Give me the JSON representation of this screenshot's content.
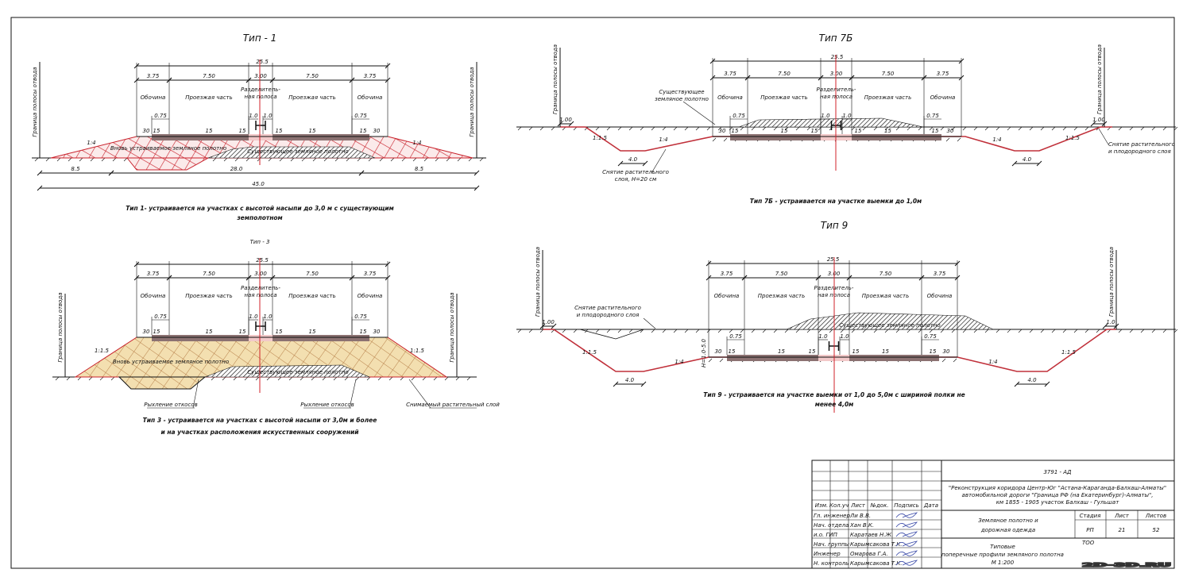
{
  "sections": [
    {
      "title": "Тип - 1",
      "total": "25.5",
      "parts": [
        "3.75",
        "7.50",
        "3.00",
        "7.50",
        "3.75"
      ],
      "zones": [
        "Обочина",
        "Проезжая часть",
        "Проезжая часть",
        "Обочина"
      ],
      "median": [
        "Разделитель-",
        "ная полоса"
      ],
      "small": [
        "0.75",
        "1.0",
        "1.0",
        "0.75"
      ],
      "grades": [
        "30",
        "15",
        "15",
        "15",
        "15",
        "15",
        "15",
        "30"
      ],
      "slopes": [
        "1:4",
        "1:4"
      ],
      "border": "Граница полосы отвода",
      "notes": [
        "Вновь устраиваемое земляное полотно",
        "Существующее земляное полотно"
      ],
      "bottom": [
        "8.5",
        "28.0",
        "8.5"
      ],
      "overall": "45.0",
      "caption": [
        "Тип 1- устраивается на участках с высотой насыпи до 3,0 м с существующим",
        "земполотном"
      ]
    },
    {
      "title": "Тип - 3",
      "total": "25.5",
      "parts": [
        "3.75",
        "7.50",
        "3.00",
        "7.50",
        "3.75"
      ],
      "zones": [
        "Обочина",
        "Проезжая часть",
        "Проезжая часть",
        "Обочина"
      ],
      "median": [
        "Разделитель-",
        "ная полоса"
      ],
      "small": [
        "0.75",
        "1.0",
        "1.0",
        "0.75"
      ],
      "grades": [
        "30",
        "15",
        "15",
        "15",
        "15",
        "15",
        "15",
        "30"
      ],
      "slopes": [
        "1:1.5",
        "1:1.5"
      ],
      "border": "Граница полосы отвода",
      "notes": [
        "Вновь устраиваемое земляное полотно",
        "Существующее земляное полотно",
        "Рыхление откосов",
        "Рыхление откосов",
        "Снимаемый растительный слой"
      ],
      "caption": [
        "Тип 3 - устраивается на участках с высотой насыпи от 3,0м и более",
        "и на участках расположения искусственных сооружений"
      ]
    },
    {
      "title": "Тип 7Б",
      "total": "25.5",
      "parts": [
        "3.75",
        "7.50",
        "3.00",
        "7.50",
        "3.75"
      ],
      "zones": [
        "Обочина",
        "Проезжая часть",
        "Проезжая часть",
        "Обочина"
      ],
      "median": [
        "Разделитель-",
        "ная полоса"
      ],
      "small": [
        "0.75",
        "1.0",
        "1.0",
        "0.75"
      ],
      "grades": [
        "30",
        "15",
        "15",
        "15",
        "15",
        "15",
        "15",
        "30"
      ],
      "slopes": [
        "1:1.5",
        "1:4",
        "1:4",
        "1:1.5"
      ],
      "ditch": [
        "4.0",
        "4.0"
      ],
      "edge": [
        "1.00",
        "1.00"
      ],
      "border": "Граница полосы отвода",
      "notes": [
        "Существующее",
        "земляное полотно",
        "Снятие растительного",
        "слоя, H=20 см",
        "Снятие растительного",
        "и плодородного слоя"
      ],
      "caption": [
        "Тип 7Б - устраивается на участке выемки до 1,0м"
      ]
    },
    {
      "title": "Тип 9",
      "total": "25.5",
      "parts": [
        "3.75",
        "7.50",
        "3.00",
        "7.50",
        "3.75"
      ],
      "zones": [
        "Обочина",
        "Проезжая часть",
        "Проезжая часть",
        "Обочина"
      ],
      "median": [
        "Разделитель-",
        "ная полоса"
      ],
      "small": [
        "0.75",
        "1.0",
        "1.0",
        "0.75"
      ],
      "grades": [
        "30",
        "15",
        "15",
        "15",
        "15",
        "15",
        "15",
        "30"
      ],
      "slopes": [
        "1:1.5",
        "1:4",
        "1:4",
        "1:1.5"
      ],
      "ditch": [
        "4.0",
        "4.0"
      ],
      "edge": [
        "1.00",
        "1.0"
      ],
      "border": "Граница полосы отвода",
      "notes": [
        "Снятие растительного",
        "и плодородного слоя",
        "Существующее земляное полотно",
        "H=1.0-5.0"
      ],
      "caption": [
        "Тип 9 - устраивается на участке выемки от 1,0 до 5,0м с шириной полки не",
        "менее 4,0м"
      ]
    }
  ],
  "title_block": {
    "code": "3791 - АД",
    "project": [
      "\"Реконструкция коридора Центр-Юг \"Астана-Караганда-Балхаш-Алматы\"",
      "автомобильной дороги \"Граница РФ (на Екатеринбург)-Алматы\",",
      "км 1855 - 1905 участок Балхаш - Гульшат"
    ],
    "headers": [
      "Изм.",
      "Кол.уч",
      "Лист",
      "№док.",
      "Подпись",
      "Дата"
    ],
    "staff": [
      {
        "role": "Гл. инженер",
        "name": "Ли В.В."
      },
      {
        "role": "Нач. отдела",
        "name": "Хан В.К."
      },
      {
        "role": "и.о. ГИП",
        "name": "Каратаев Н.Ж."
      },
      {
        "role": "Нач. группы",
        "name": "Карымсакова Т.К."
      },
      {
        "role": "Инженер",
        "name": "Омарова Г.А."
      },
      {
        "role": "Н. контроль",
        "name": "Карымсакова Т.К."
      }
    ],
    "sheet_name": [
      "Земляное полотно и",
      "дорожная одежда"
    ],
    "stage_headers": [
      "Стадия",
      "Лист",
      "Листов"
    ],
    "stage_values": [
      "РП",
      "21",
      "52"
    ],
    "drawing_title": [
      "Типовые",
      "поперечные профили земляного полотна",
      "М 1:200"
    ],
    "company": "ТОО"
  },
  "watermark": "2D-3D.RU",
  "colors": {
    "axis": "#d0202a",
    "fill_new": "#c8202a",
    "fill_type3": "#f3dfb0",
    "pavement": "#8c7272"
  }
}
